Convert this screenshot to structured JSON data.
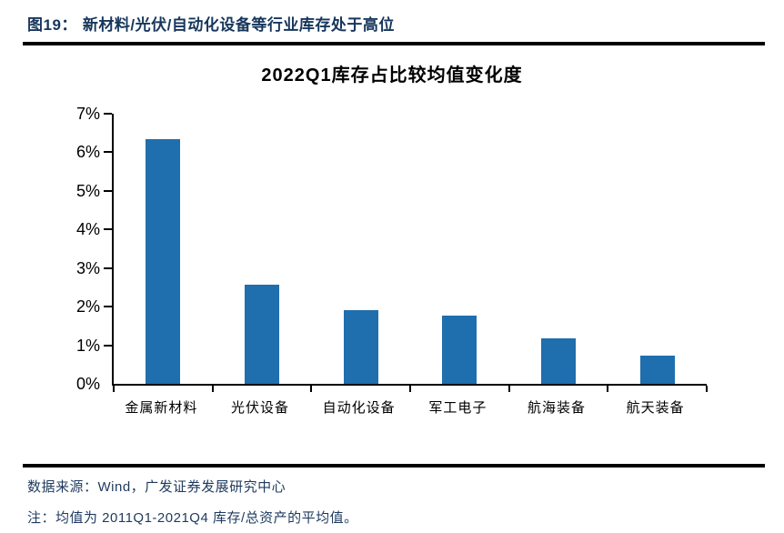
{
  "header": {
    "figure_label": "图19：",
    "title": "新材料/光伏/自动化设备等行业库存处于高位"
  },
  "chart_data": {
    "type": "bar",
    "title": "2022Q1库存占比较均值变化度",
    "categories": [
      "金属新材料",
      "光伏设备",
      "自动化设备",
      "军工电子",
      "航海装备",
      "航天装备"
    ],
    "values": [
      6.33,
      2.56,
      1.92,
      1.76,
      1.17,
      0.74
    ],
    "unit": "%",
    "xlabel": "",
    "ylabel": "",
    "ylim": [
      0,
      7
    ],
    "ytick_step": 1,
    "ytick_labels": [
      "0%",
      "1%",
      "2%",
      "3%",
      "4%",
      "5%",
      "6%",
      "7%"
    ],
    "grid": false,
    "legend_position": "none",
    "bar_color": "#1f6eae",
    "axis_color": "#000000"
  },
  "footer": {
    "source": "数据来源：Wind，广发证券发展研究中心",
    "note": "注：均值为 2011Q1-2021Q4 库存/总资产的平均值。"
  },
  "colors": {
    "header_text": "#16365c",
    "footer_text": "#1e3a5f",
    "rule": "#000000",
    "bar": "#1f6eae",
    "background": "#ffffff"
  }
}
